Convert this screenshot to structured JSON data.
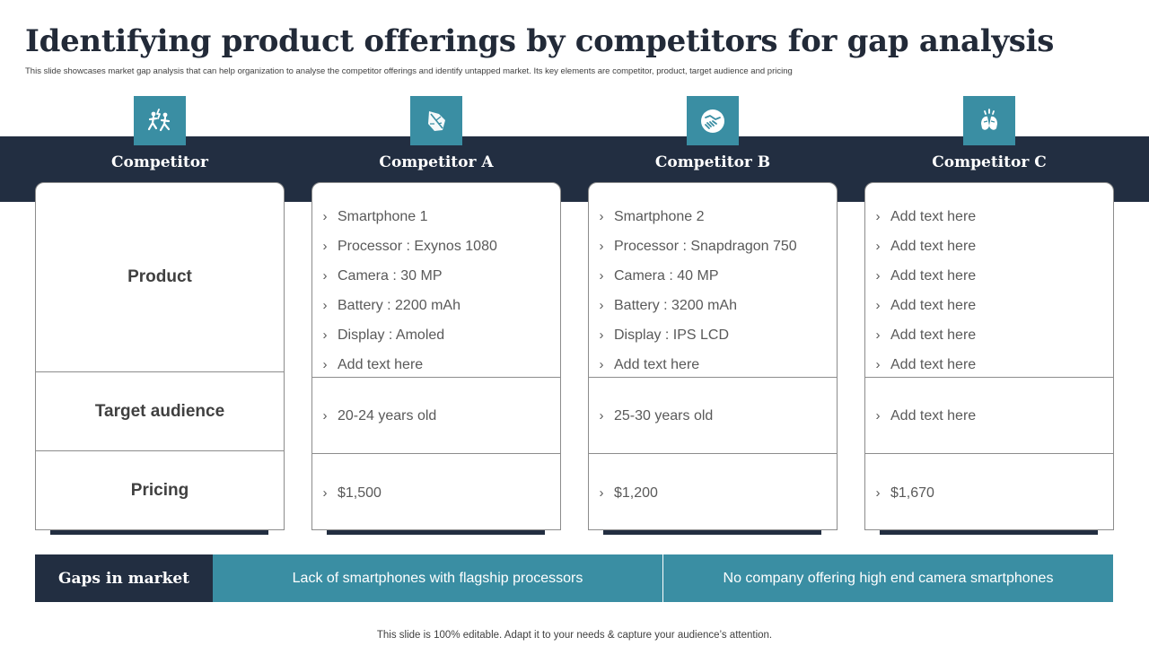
{
  "title": "Identifying product offerings by competitors for gap analysis",
  "subtitle": "This slide showcases market gap analysis that can help organization to analyse the competitor offerings and identify untapped market. Its key elements are competitor, product, target audience and pricing",
  "columns": [
    {
      "header": "Competitor",
      "icon": "team-running-icon",
      "row_labels": [
        "Product",
        "Target audience",
        "Pricing"
      ]
    },
    {
      "header": "Competitor A",
      "icon": "leaf-icon",
      "product": [
        "Smartphone 1",
        "Processor : Exynos 1080",
        "Camera : 30 MP",
        "Battery : 2200 mAh",
        "Display : Amoled",
        "Add text here"
      ],
      "target_audience": "20-24 years old",
      "pricing": "$1,500"
    },
    {
      "header": "Competitor B",
      "icon": "handshake-circle-icon",
      "product": [
        "Smartphone 2",
        "Processor : Snapdragon 750",
        "Camera : 40 MP",
        "Battery : 3200 mAh",
        "Display : IPS LCD",
        "Add text here"
      ],
      "target_audience": "25-30 years old",
      "pricing": "$1,200"
    },
    {
      "header": "Competitor C",
      "icon": "clapping-hands-icon",
      "product": [
        "Add text here",
        "Add text here",
        "Add text here",
        "Add text here",
        "Add text here",
        "Add text here"
      ],
      "target_audience": "Add text here",
      "pricing": "$1,670"
    }
  ],
  "gaps": {
    "label": "Gaps in market",
    "items": [
      "Lack of smartphones with flagship processors",
      "No company offering high end camera smartphones"
    ]
  },
  "footer": "This slide is 100% editable. Adapt it to your needs & capture your audience’s attention.",
  "colors": {
    "navy": "#222e41",
    "teal": "#3a8ea3",
    "text": "#404040"
  }
}
